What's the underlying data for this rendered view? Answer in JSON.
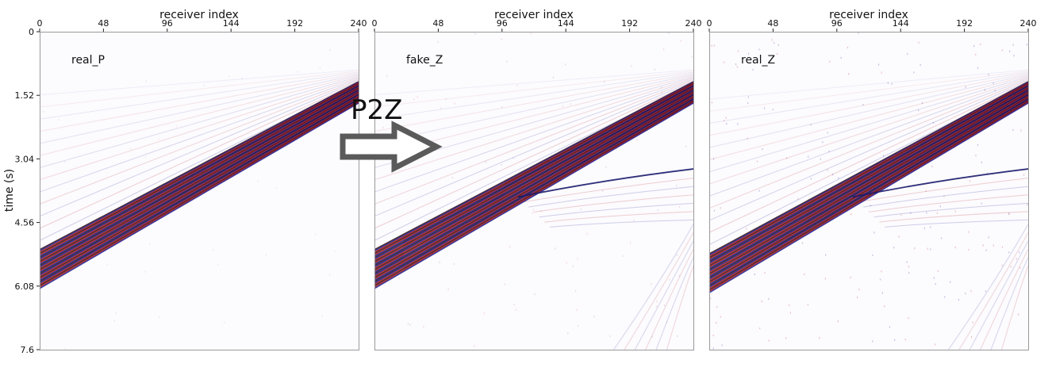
{
  "chart_data": {
    "type": "heatmap",
    "title": "",
    "xlabel": "receiver index",
    "ylabel": "time (s)",
    "xlim": [
      0,
      240
    ],
    "ylim": [
      7.6,
      0
    ],
    "x_ticks": [
      0,
      48,
      96,
      144,
      192,
      240
    ],
    "y_ticks": [
      "0",
      "1.52",
      "3.04",
      "4.56",
      "6.08",
      "7.6"
    ],
    "colormap": [
      "#1a1a8c",
      "#ffffff",
      "#b01818"
    ],
    "transform_label": "P2Z",
    "panels": [
      {
        "label": "real_P",
        "first_arrival": {
          "t_at_0": 5.4,
          "t_at_240": 1.3
        },
        "mode_conversion": false,
        "noise": 0.15
      },
      {
        "label": "fake_Z",
        "first_arrival": {
          "t_at_0": 5.4,
          "t_at_240": 1.3
        },
        "mode_conversion": true,
        "noise": 0.35
      },
      {
        "label": "real_Z",
        "first_arrival": {
          "t_at_0": 5.5,
          "t_at_240": 1.3
        },
        "mode_conversion": true,
        "noise": 0.75
      }
    ]
  }
}
